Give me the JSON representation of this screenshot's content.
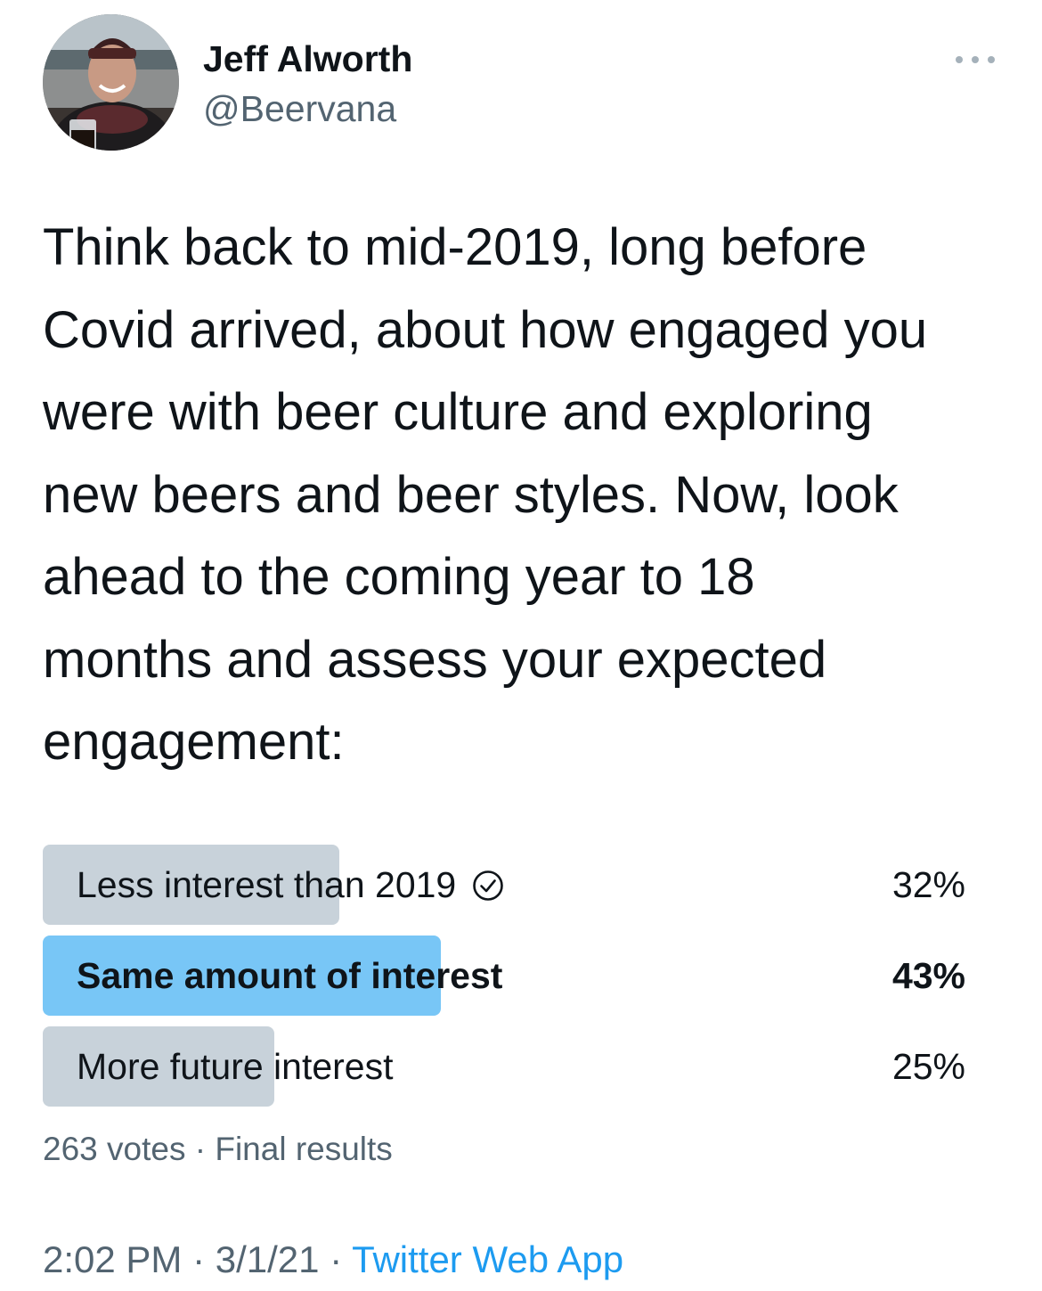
{
  "author": {
    "display_name": "Jeff Alworth",
    "handle": "@Beervana"
  },
  "tweet": {
    "text_lines": [
      "Think back to mid-2019, long before",
      "Covid arrived, about how engaged you",
      "were with beer culture and exploring",
      "new beers and beer styles. Now, look",
      "ahead to the coming year to 18",
      "months and assess your expected",
      "engagement:"
    ]
  },
  "poll": {
    "options": [
      {
        "label": "Less interest than 2019",
        "percent_text": "32%",
        "percent": 32,
        "voted": true,
        "winner": false
      },
      {
        "label": "Same amount of interest",
        "percent_text": "43%",
        "percent": 43,
        "voted": false,
        "winner": true
      },
      {
        "label": "More future interest",
        "percent_text": "25%",
        "percent": 25,
        "voted": false,
        "winner": false
      }
    ],
    "votes": "263 votes",
    "separator": " · ",
    "status": "Final results"
  },
  "meta": {
    "time": "2:02 PM",
    "date": "3/1/21",
    "separator": " · ",
    "source": "Twitter Web App"
  },
  "colors": {
    "bar": "#c8d2da",
    "bar_winner": "#78c6f6",
    "secondary_text": "#536471",
    "link": "#1d9bf0"
  },
  "icons": {
    "more": "more-horizontal-icon",
    "voted": "check-circle-icon"
  }
}
